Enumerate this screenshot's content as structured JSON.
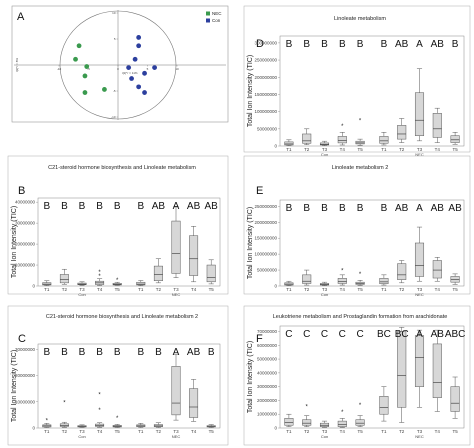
{
  "figure": {
    "pca": {
      "label": "A",
      "legend": [
        {
          "name": "NEC",
          "color": "#3a9a4e"
        },
        {
          "name": "Con",
          "color": "#2c3f9e"
        }
      ],
      "xlabel": "t[1]*r = 11%",
      "ylabel": "t[2]*r = 8%",
      "xlim": [
        -12,
        12
      ],
      "ylim": [
        -10,
        10
      ],
      "points": [
        {
          "group": "NEC",
          "x": -6.6,
          "y": 3.7
        },
        {
          "group": "NEC",
          "x": -5.3,
          "y": -0.3
        },
        {
          "group": "NEC",
          "x": -5.6,
          "y": -2.1
        },
        {
          "group": "NEC",
          "x": -7.2,
          "y": 1.1
        },
        {
          "group": "NEC",
          "x": -5.6,
          "y": -5.3
        },
        {
          "group": "NEC",
          "x": -2.3,
          "y": -4.7
        },
        {
          "group": "Con",
          "x": 3.5,
          "y": 5.3
        },
        {
          "group": "Con",
          "x": 3.5,
          "y": 3.7
        },
        {
          "group": "Con",
          "x": 2.9,
          "y": 1.1
        },
        {
          "group": "Con",
          "x": 1.8,
          "y": -0.5
        },
        {
          "group": "Con",
          "x": 2.3,
          "y": -2.6
        },
        {
          "group": "Con",
          "x": 3.5,
          "y": -4.2
        },
        {
          "group": "Con",
          "x": 4.5,
          "y": -5.3
        },
        {
          "group": "Con",
          "x": 4.5,
          "y": -1.6
        },
        {
          "group": "Con",
          "x": 6.2,
          "y": -0.5
        }
      ]
    },
    "groups": [
      "Con",
      "NEC"
    ]
  },
  "chart_data": [
    {
      "type": "box",
      "panel": "B",
      "title": "C21-steroid hormone biosynthesis and Linoleate metabolism",
      "ylabel": "Total Ion Intensity (TIC)",
      "yticks": [
        0,
        10000000,
        20000000,
        30000000,
        40000000
      ],
      "ytick_labels": [
        "0",
        "10000000",
        "20000000",
        "30000000",
        "40000000"
      ],
      "ylim": [
        0,
        42000000
      ],
      "categories": [
        "T1",
        "T2",
        "T3",
        "T4",
        "T5",
        "T1",
        "T2",
        "T3",
        "T4",
        "T5"
      ],
      "letters": [
        "B",
        "B",
        "B",
        "B",
        "B",
        "B",
        "AB",
        "A",
        "AB",
        "AB"
      ],
      "boxes": [
        {
          "min": 200000,
          "q1": 500000,
          "median": 900000,
          "q3": 1600000,
          "max": 2500000,
          "outliers": []
        },
        {
          "min": 800000,
          "q1": 1500000,
          "median": 3000000,
          "q3": 5500000,
          "max": 8000000,
          "outliers": []
        },
        {
          "min": 300000,
          "q1": 600000,
          "median": 900000,
          "q3": 1400000,
          "max": 2000000,
          "outliers": []
        },
        {
          "min": 300000,
          "q1": 700000,
          "median": 1500000,
          "q3": 2300000,
          "max": 3500000,
          "outliers": [
            5000000,
            7000000
          ]
        },
        {
          "min": 300000,
          "q1": 500000,
          "median": 800000,
          "q3": 1300000,
          "max": 1800000,
          "outliers": [
            3000000
          ]
        },
        {
          "min": 200000,
          "q1": 500000,
          "median": 900000,
          "q3": 1800000,
          "max": 2600000,
          "outliers": []
        },
        {
          "min": 1500000,
          "q1": 2500000,
          "median": 5500000,
          "q3": 9500000,
          "max": 13000000,
          "outliers": []
        },
        {
          "min": 4000000,
          "q1": 6000000,
          "median": 15500000,
          "q3": 31000000,
          "max": 38000000,
          "outliers": []
        },
        {
          "min": 2000000,
          "q1": 5000000,
          "median": 13000000,
          "q3": 24000000,
          "max": 28500000,
          "outliers": []
        },
        {
          "min": 1000000,
          "q1": 2000000,
          "median": 4000000,
          "q3": 10000000,
          "max": 12500000,
          "outliers": []
        }
      ]
    },
    {
      "type": "box",
      "panel": "C",
      "title": "C21-steroid hormone biosynthesis and Linoleate metabolism 2",
      "ylabel": "Total Ion Intensity (TIC)",
      "yticks": [
        0,
        10000000,
        20000000,
        30000000
      ],
      "ytick_labels": [
        "0",
        "10000000",
        "20000000",
        "30000000"
      ],
      "ylim": [
        0,
        32000000
      ],
      "categories": [
        "T1",
        "T2",
        "T3",
        "T4",
        "T5",
        "T1",
        "T2",
        "T3",
        "T4",
        "T5"
      ],
      "letters": [
        "B",
        "B",
        "B",
        "B",
        "B",
        "B",
        "B",
        "A",
        "AB",
        "B"
      ],
      "boxes": [
        {
          "min": 200000,
          "q1": 400000,
          "median": 800000,
          "q3": 1200000,
          "max": 1800000,
          "outliers": [
            3000000
          ]
        },
        {
          "min": 300000,
          "q1": 600000,
          "median": 1000000,
          "q3": 1600000,
          "max": 2200000,
          "outliers": [
            10000000
          ]
        },
        {
          "min": 200000,
          "q1": 400000,
          "median": 600000,
          "q3": 900000,
          "max": 1200000,
          "outliers": []
        },
        {
          "min": 300000,
          "q1": 600000,
          "median": 1000000,
          "q3": 1500000,
          "max": 2000000,
          "outliers": [
            13000000,
            7000000
          ]
        },
        {
          "min": 200000,
          "q1": 400000,
          "median": 700000,
          "q3": 1000000,
          "max": 1400000,
          "outliers": [
            4000000
          ]
        },
        {
          "min": 200000,
          "q1": 500000,
          "median": 800000,
          "q3": 1200000,
          "max": 1800000,
          "outliers": []
        },
        {
          "min": 200000,
          "q1": 500000,
          "median": 800000,
          "q3": 1300000,
          "max": 2000000,
          "outliers": []
        },
        {
          "min": 3000000,
          "q1": 5000000,
          "median": 9500000,
          "q3": 23500000,
          "max": 28000000,
          "outliers": []
        },
        {
          "min": 2500000,
          "q1": 4000000,
          "median": 8000000,
          "q3": 15000000,
          "max": 18500000,
          "outliers": []
        },
        {
          "min": 200000,
          "q1": 400000,
          "median": 600000,
          "q3": 900000,
          "max": 1300000,
          "outliers": []
        }
      ]
    },
    {
      "type": "box",
      "panel": "D",
      "title": "Linoleate metabolism",
      "ylabel": "Total Ion Intensity (TIC)",
      "yticks": [
        0,
        50000000,
        100000000,
        150000000,
        200000000,
        250000000,
        300000000
      ],
      "ytick_labels": [
        "0",
        "50000000",
        "100000000",
        "150000000",
        "200000000",
        "250000000",
        "300000000"
      ],
      "ylim": [
        0,
        320000000
      ],
      "categories": [
        "T1",
        "T2",
        "T3",
        "T4",
        "T5",
        "T1",
        "T2",
        "T3",
        "T4",
        "T5"
      ],
      "letters": [
        "B",
        "B",
        "B",
        "B",
        "B",
        "B",
        "AB",
        "A",
        "AB",
        "B"
      ],
      "boxes": [
        {
          "min": 1000000,
          "q1": 3000000,
          "median": 6000000,
          "q3": 12000000,
          "max": 18000000,
          "outliers": []
        },
        {
          "min": 4000000,
          "q1": 8000000,
          "median": 15000000,
          "q3": 35000000,
          "max": 50000000,
          "outliers": []
        },
        {
          "min": 1000000,
          "q1": 3000000,
          "median": 5000000,
          "q3": 9000000,
          "max": 14000000,
          "outliers": []
        },
        {
          "min": 3000000,
          "q1": 9000000,
          "median": 16000000,
          "q3": 28000000,
          "max": 40000000,
          "outliers": [
            60000000
          ]
        },
        {
          "min": 2000000,
          "q1": 6000000,
          "median": 9000000,
          "q3": 14000000,
          "max": 20000000,
          "outliers": [
            75000000
          ]
        },
        {
          "min": 3000000,
          "q1": 8000000,
          "median": 15000000,
          "q3": 28000000,
          "max": 40000000,
          "outliers": []
        },
        {
          "min": 10000000,
          "q1": 20000000,
          "median": 35000000,
          "q3": 60000000,
          "max": 80000000,
          "outliers": []
        },
        {
          "min": 15000000,
          "q1": 30000000,
          "median": 75000000,
          "q3": 155000000,
          "max": 225000000,
          "outliers": []
        },
        {
          "min": 10000000,
          "q1": 25000000,
          "median": 50000000,
          "q3": 95000000,
          "max": 110000000,
          "outliers": []
        },
        {
          "min": 5000000,
          "q1": 10000000,
          "median": 18000000,
          "q3": 30000000,
          "max": 40000000,
          "outliers": []
        }
      ]
    },
    {
      "type": "box",
      "panel": "E",
      "title": "Linoleate metabolism 2",
      "ylabel": "Total Ion Intensity (TIC)",
      "yticks": [
        0,
        50000000,
        100000000,
        150000000,
        200000000,
        250000000
      ],
      "ytick_labels": [
        "0",
        "50000000",
        "100000000",
        "150000000",
        "200000000",
        "250000000"
      ],
      "ylim": [
        0,
        270000000
      ],
      "categories": [
        "T1",
        "T2",
        "T3",
        "T4",
        "T5",
        "T1",
        "T2",
        "T3",
        "T4",
        "T5"
      ],
      "letters": [
        "B",
        "B",
        "B",
        "B",
        "B",
        "B",
        "AB",
        "A",
        "AB",
        "AB"
      ],
      "boxes": [
        {
          "min": 1000000,
          "q1": 3000000,
          "median": 6000000,
          "q3": 10000000,
          "max": 15000000,
          "outliers": []
        },
        {
          "min": 3000000,
          "q1": 8000000,
          "median": 15000000,
          "q3": 35000000,
          "max": 50000000,
          "outliers": []
        },
        {
          "min": 1000000,
          "q1": 3000000,
          "median": 5000000,
          "q3": 8000000,
          "max": 12000000,
          "outliers": []
        },
        {
          "min": 3000000,
          "q1": 8000000,
          "median": 14000000,
          "q3": 24000000,
          "max": 35000000,
          "outliers": [
            50000000
          ]
        },
        {
          "min": 2000000,
          "q1": 5000000,
          "median": 8000000,
          "q3": 12000000,
          "max": 18000000,
          "outliers": [
            40000000
          ]
        },
        {
          "min": 3000000,
          "q1": 7000000,
          "median": 13000000,
          "q3": 24000000,
          "max": 35000000,
          "outliers": []
        },
        {
          "min": 10000000,
          "q1": 20000000,
          "median": 35000000,
          "q3": 70000000,
          "max": 80000000,
          "outliers": []
        },
        {
          "min": 15000000,
          "q1": 30000000,
          "median": 65000000,
          "q3": 135000000,
          "max": 185000000,
          "outliers": []
        },
        {
          "min": 15000000,
          "q1": 25000000,
          "median": 50000000,
          "q3": 80000000,
          "max": 90000000,
          "outliers": []
        },
        {
          "min": 5000000,
          "q1": 12000000,
          "median": 20000000,
          "q3": 30000000,
          "max": 38000000,
          "outliers": []
        }
      ]
    },
    {
      "type": "box",
      "panel": "F",
      "title": "Leukotriene metabolism and Prostaglandin formation from arachidonate",
      "ylabel": "Total Ion Intensity (TIC)",
      "yticks": [
        0,
        10000000,
        20000000,
        30000000,
        40000000,
        50000000,
        60000000,
        70000000
      ],
      "ytick_labels": [
        "0",
        "10000000",
        "20000000",
        "30000000",
        "40000000",
        "50000000",
        "60000000",
        "70000000"
      ],
      "ylim": [
        0,
        74000000
      ],
      "categories": [
        "T1",
        "T2",
        "T3",
        "T4",
        "T5",
        "T1",
        "T2",
        "T3",
        "T4",
        "T5"
      ],
      "letters": [
        "C",
        "C",
        "C",
        "C",
        "C",
        "BC",
        "BC",
        "A",
        "AB",
        "ABC"
      ],
      "boxes": [
        {
          "min": 1000000,
          "q1": 2000000,
          "median": 4000000,
          "q3": 7000000,
          "max": 10000000,
          "outliers": []
        },
        {
          "min": 1000000,
          "q1": 2000000,
          "median": 3500000,
          "q3": 6000000,
          "max": 9000000,
          "outliers": [
            16000000
          ]
        },
        {
          "min": 500000,
          "q1": 1000000,
          "median": 2000000,
          "q3": 3500000,
          "max": 5000000,
          "outliers": []
        },
        {
          "min": 500000,
          "q1": 1000000,
          "median": 2500000,
          "q3": 5000000,
          "max": 7000000,
          "outliers": [
            12000000
          ]
        },
        {
          "min": 1000000,
          "q1": 2000000,
          "median": 3500000,
          "q3": 6000000,
          "max": 9000000,
          "outliers": [
            17000000
          ]
        },
        {
          "min": 5000000,
          "q1": 10000000,
          "median": 15000000,
          "q3": 23000000,
          "max": 30000000,
          "outliers": []
        },
        {
          "min": 4000000,
          "q1": 15000000,
          "median": 38000000,
          "q3": 70000000,
          "max": 73000000,
          "outliers": []
        },
        {
          "min": 15000000,
          "q1": 30000000,
          "median": 51000000,
          "q3": 67000000,
          "max": 71000000,
          "outliers": []
        },
        {
          "min": 12000000,
          "q1": 22000000,
          "median": 33000000,
          "q3": 61000000,
          "max": 71000000,
          "outliers": []
        },
        {
          "min": 7000000,
          "q1": 12000000,
          "median": 18000000,
          "q3": 30000000,
          "max": 37000000,
          "outliers": []
        }
      ]
    }
  ]
}
